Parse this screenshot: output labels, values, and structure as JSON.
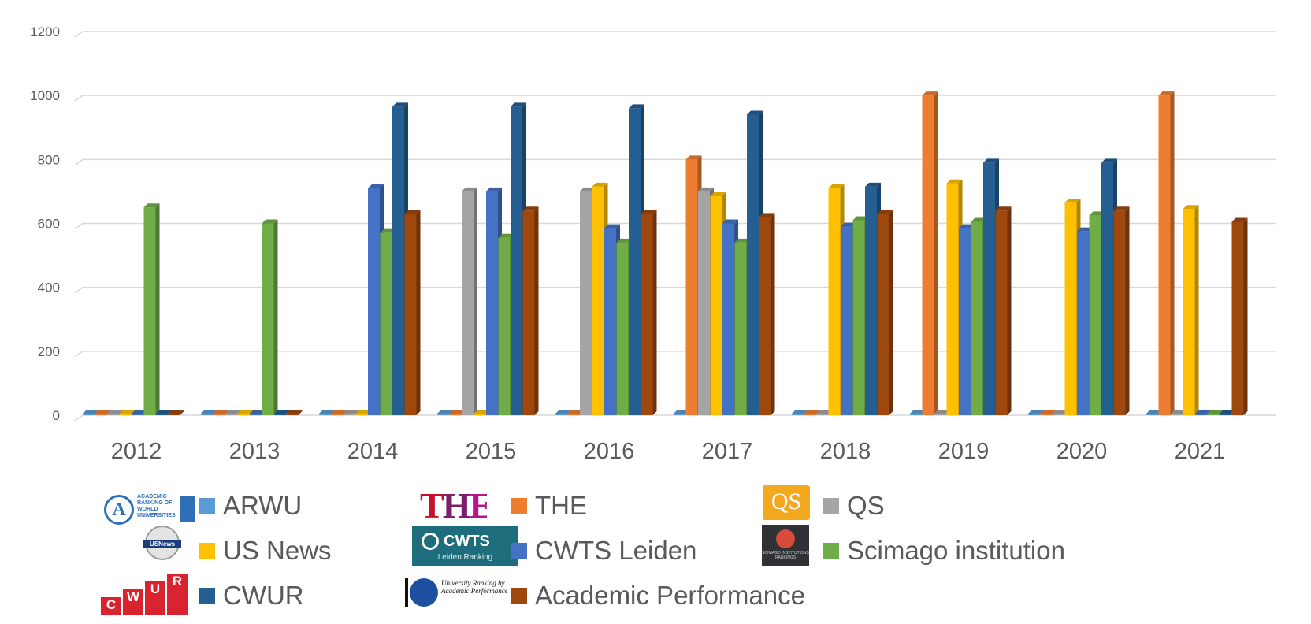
{
  "chart_data": {
    "type": "bar",
    "style": "3d-clustered-column",
    "categories": [
      "2012",
      "2013",
      "2014",
      "2015",
      "2016",
      "2017",
      "2018",
      "2019",
      "2020",
      "2021"
    ],
    "ylim": [
      0,
      1200
    ],
    "yticks": [
      0,
      200,
      400,
      600,
      800,
      1000,
      1200
    ],
    "ytick_labels": [
      "0",
      "200",
      "400",
      "600",
      "800",
      "1000",
      "1200"
    ],
    "grid": true,
    "legend_position": "bottom",
    "series": [
      {
        "name": "ARWU",
        "color": "#5b9bd5",
        "logo": "arwu-logo",
        "values": [
          0,
          0,
          0,
          0,
          0,
          0,
          0,
          0,
          0,
          0
        ]
      },
      {
        "name": "THE",
        "color": "#ed7d31",
        "logo": "the-logo",
        "values": [
          0,
          0,
          0,
          0,
          0,
          800,
          0,
          1000,
          0,
          1000
        ]
      },
      {
        "name": "QS",
        "color": "#a5a5a5",
        "logo": "qs-logo",
        "values": [
          0,
          0,
          0,
          700,
          700,
          700,
          0,
          0,
          0,
          0
        ]
      },
      {
        "name": "US News",
        "color": "#ffc000",
        "logo": "usnews-logo",
        "values": [
          0,
          0,
          0,
          0,
          715,
          685,
          710,
          725,
          665,
          645
        ]
      },
      {
        "name": "CWTS Leiden",
        "color": "#4472c4",
        "logo": "cwts-logo",
        "values": [
          0,
          0,
          710,
          700,
          585,
          600,
          590,
          585,
          575,
          0
        ]
      },
      {
        "name": "Scimago institution",
        "color": "#70ad47",
        "logo": "scimago-logo",
        "values": [
          650,
          600,
          570,
          555,
          540,
          540,
          610,
          605,
          625,
          0
        ]
      },
      {
        "name": "CWUR",
        "color": "#255e91",
        "logo": "cwur-logo",
        "values": [
          0,
          0,
          965,
          965,
          960,
          940,
          715,
          790,
          790,
          0
        ]
      },
      {
        "name": "Academic Performance",
        "color": "#9e480e",
        "logo": "urap-logo",
        "values": [
          0,
          0,
          630,
          640,
          630,
          620,
          630,
          640,
          640,
          605
        ]
      }
    ]
  },
  "legend": {
    "items": [
      {
        "label": "ARWU"
      },
      {
        "label": "THE"
      },
      {
        "label": "QS"
      },
      {
        "label": "US News"
      },
      {
        "label": "CWTS Leiden"
      },
      {
        "label": "Scimago institution"
      },
      {
        "label": "CWUR"
      },
      {
        "label": "Academic Performance"
      }
    ]
  },
  "logos": {
    "arwu": {
      "mark": "A",
      "text": "ACADEMIC RANKING OF WORLD UNIVERSITIES"
    },
    "the": {
      "mark": "THE"
    },
    "qs": {
      "mark": "QS"
    },
    "usnews": {
      "mark": "USNews"
    },
    "cwts": {
      "mark": "CWTS",
      "sub": "Leiden Ranking"
    },
    "scimago": {
      "text": "SCIMAGO INSTITUTIONS RANKINGS"
    },
    "cwur": {
      "letters": [
        "C",
        "W",
        "U",
        "R"
      ]
    },
    "urap": {
      "text": "University Ranking by Academic Performance"
    }
  }
}
